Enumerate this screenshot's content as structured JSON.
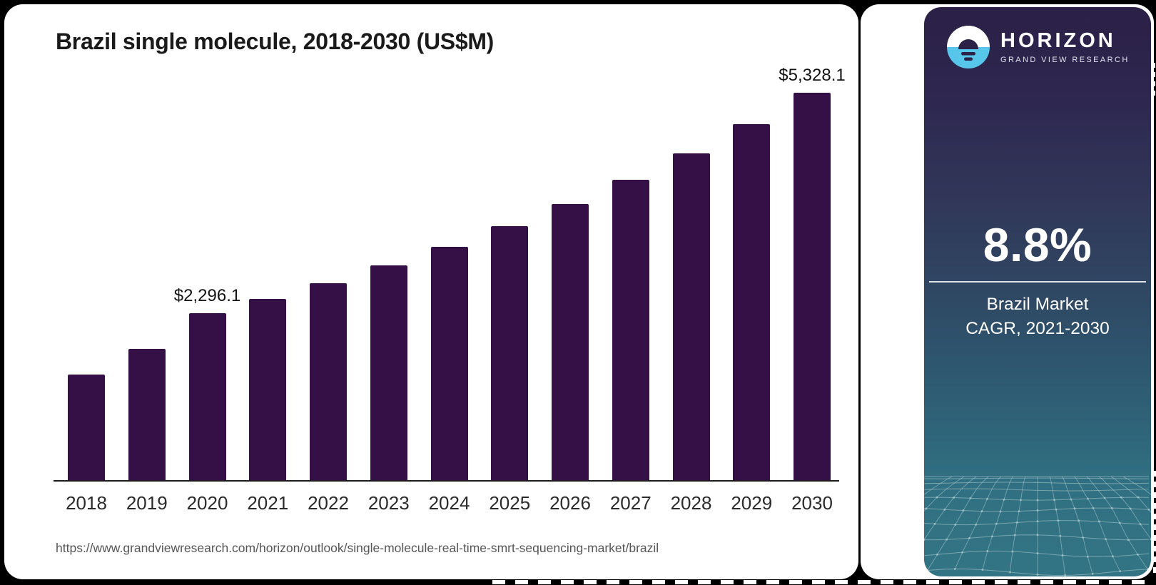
{
  "chart_data": {
    "type": "bar",
    "title": "Brazil single molecule, 2018-2030 (US$M)",
    "categories": [
      "2018",
      "2019",
      "2020",
      "2021",
      "2022",
      "2023",
      "2024",
      "2025",
      "2026",
      "2027",
      "2028",
      "2029",
      "2030"
    ],
    "values": [
      1452.3,
      1806.8,
      2296.1,
      2493.5,
      2712.9,
      2951.6,
      3211.3,
      3493.9,
      3801.4,
      4135.9,
      4499.9,
      4895.9,
      5328.1
    ],
    "data_labels": {
      "2020": "$2,296.1",
      "2030": "$5,328.1"
    },
    "ylim": [
      0,
      5430
    ],
    "xlabel": "",
    "ylabel": "",
    "grid": false,
    "legend": "none",
    "bar_color": "#351047",
    "axis_color": "#1b1b1b"
  },
  "source": {
    "url": "https://www.grandviewresearch.com/horizon/outlook/single-molecule-real-time-smrt-sequencing-market/brazil"
  },
  "sidebar": {
    "logo": {
      "name": "HORIZON",
      "tagline": "GRAND VIEW RESEARCH"
    },
    "stat_value": "8.8%",
    "stat_label_line1": "Brazil Market",
    "stat_label_line2": "CAGR, 2021-2030",
    "colors": {
      "gradient_top": "#2b2046",
      "gradient_mid": "#2f4763",
      "gradient_bottom": "#337484",
      "logo_blue": "#58c6ea",
      "logo_dark": "#2c2248",
      "mesh_line": "#aecdd3"
    }
  }
}
